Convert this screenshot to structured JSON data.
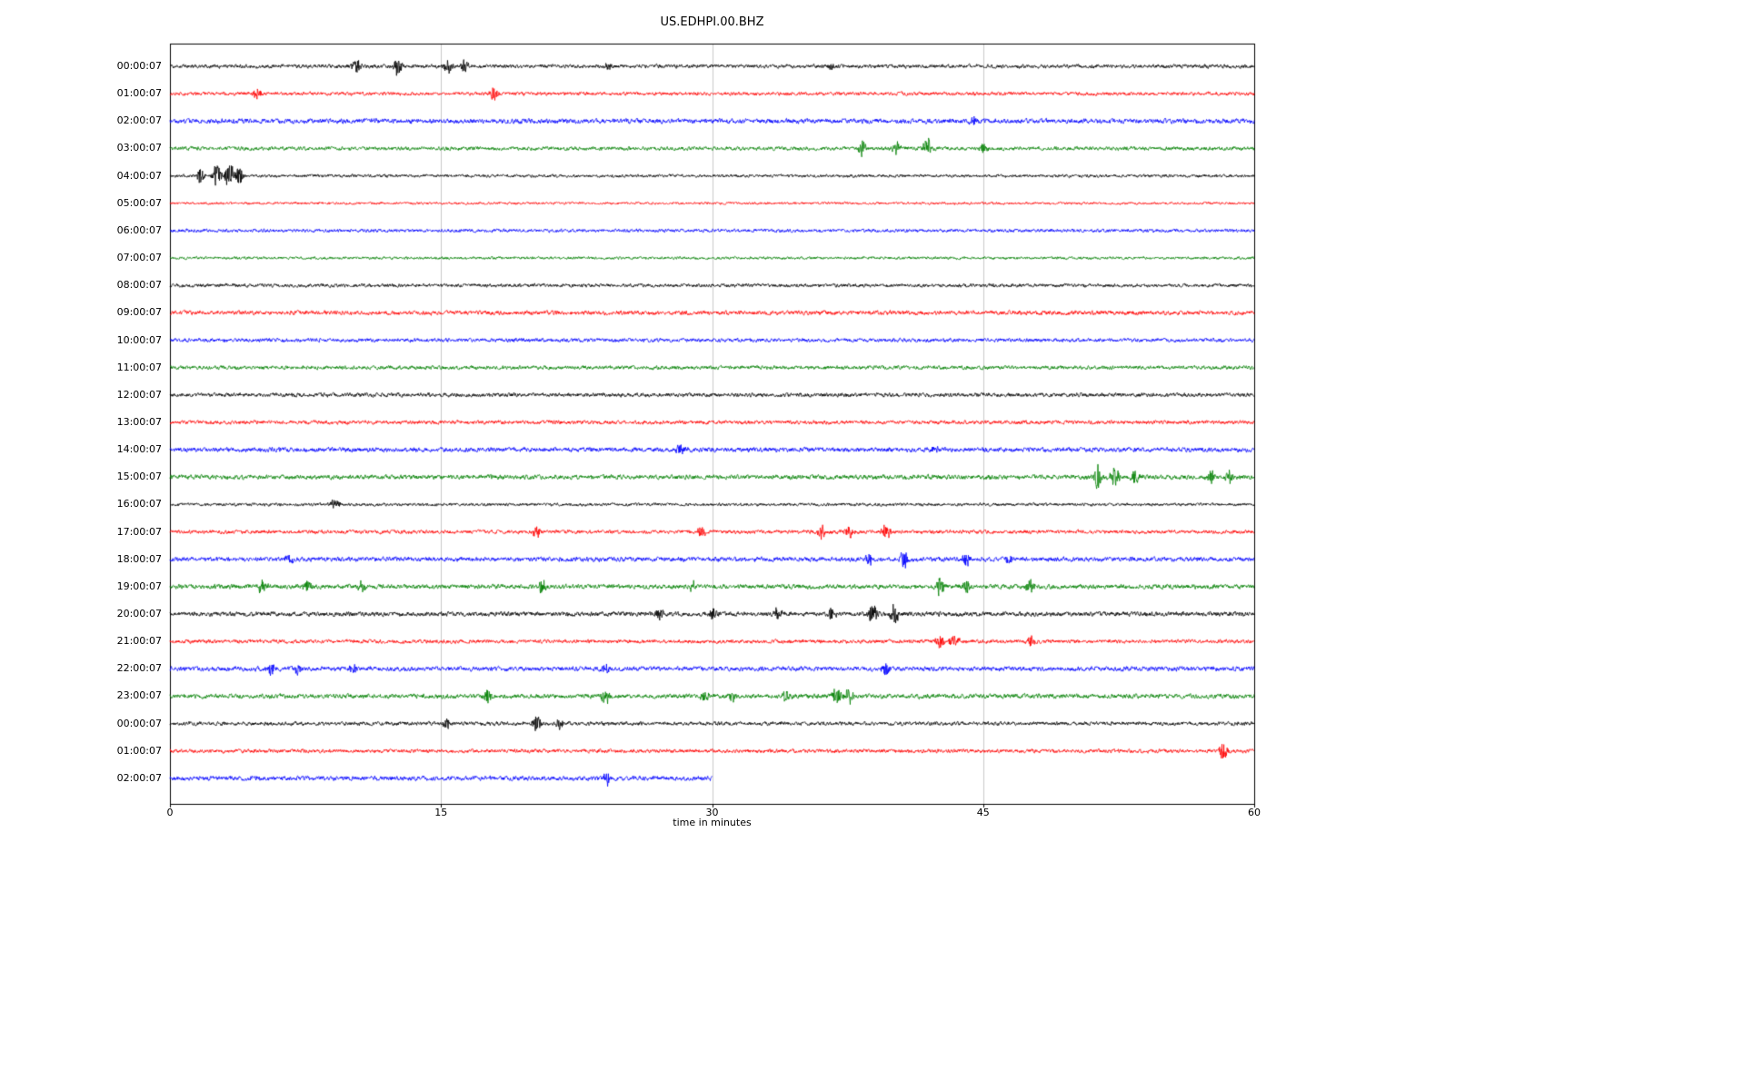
{
  "chart_data": {
    "type": "line",
    "subtype": "seismogram-helicorder",
    "title": "US.EDHPI.00.BHZ",
    "xlabel": "time in minutes",
    "x_range": [
      0,
      60
    ],
    "x_ticks": [
      0,
      15,
      30,
      45,
      60
    ],
    "grid": "vertical-light-gray",
    "legend": "none",
    "trace_color_cycle": [
      "#000000",
      "#ff0000",
      "#0000ff",
      "#008000"
    ],
    "rows": [
      {
        "label": "00:00:07",
        "color": "#000000",
        "noise": 3.0,
        "end": 60,
        "events": [
          {
            "t": 10.3,
            "a": 8
          },
          {
            "t": 12.6,
            "a": 10
          },
          {
            "t": 15.4,
            "a": 8
          },
          {
            "t": 16.3,
            "a": 6
          },
          {
            "t": 24.2,
            "a": 4
          },
          {
            "t": 36.6,
            "a": 4
          }
        ]
      },
      {
        "label": "01:00:07",
        "color": "#ff0000",
        "noise": 2.8,
        "end": 60,
        "events": [
          {
            "t": 4.8,
            "a": 7
          },
          {
            "t": 17.9,
            "a": 8
          }
        ]
      },
      {
        "label": "02:00:07",
        "color": "#0000ff",
        "noise": 3.8,
        "end": 60,
        "events": [
          {
            "t": 44.5,
            "a": 5
          }
        ]
      },
      {
        "label": "03:00:07",
        "color": "#008000",
        "noise": 3.0,
        "end": 60,
        "events": [
          {
            "t": 38.3,
            "a": 9
          },
          {
            "t": 40.2,
            "a": 7
          },
          {
            "t": 41.9,
            "a": 11
          },
          {
            "t": 45.0,
            "a": 5
          }
        ]
      },
      {
        "label": "04:00:07",
        "color": "#000000",
        "noise": 2.4,
        "end": 60,
        "events": [
          {
            "t": 1.7,
            "a": 9
          },
          {
            "t": 2.6,
            "a": 13
          },
          {
            "t": 3.3,
            "a": 17
          },
          {
            "t": 3.8,
            "a": 11
          }
        ]
      },
      {
        "label": "05:00:07",
        "color": "#ff0000",
        "noise": 2.0,
        "end": 60,
        "events": []
      },
      {
        "label": "06:00:07",
        "color": "#0000ff",
        "noise": 2.6,
        "end": 60,
        "events": []
      },
      {
        "label": "07:00:07",
        "color": "#008000",
        "noise": 2.2,
        "end": 60,
        "events": []
      },
      {
        "label": "08:00:07",
        "color": "#000000",
        "noise": 2.8,
        "end": 60,
        "events": []
      },
      {
        "label": "09:00:07",
        "color": "#ff0000",
        "noise": 3.4,
        "end": 60,
        "events": []
      },
      {
        "label": "10:00:07",
        "color": "#0000ff",
        "noise": 3.0,
        "end": 60,
        "events": []
      },
      {
        "label": "11:00:07",
        "color": "#008000",
        "noise": 3.0,
        "end": 60,
        "events": []
      },
      {
        "label": "12:00:07",
        "color": "#000000",
        "noise": 3.2,
        "end": 60,
        "events": []
      },
      {
        "label": "13:00:07",
        "color": "#ff0000",
        "noise": 3.0,
        "end": 60,
        "events": []
      },
      {
        "label": "14:00:07",
        "color": "#0000ff",
        "noise": 3.6,
        "end": 60,
        "events": [
          {
            "t": 28.2,
            "a": 5
          },
          {
            "t": 42.3,
            "a": 5
          }
        ]
      },
      {
        "label": "15:00:07",
        "color": "#008000",
        "noise": 3.6,
        "end": 60,
        "events": [
          {
            "t": 51.3,
            "a": 15
          },
          {
            "t": 52.3,
            "a": 11
          },
          {
            "t": 53.4,
            "a": 7
          },
          {
            "t": 57.6,
            "a": 8
          },
          {
            "t": 58.6,
            "a": 7
          }
        ]
      },
      {
        "label": "16:00:07",
        "color": "#000000",
        "noise": 2.4,
        "end": 60,
        "events": [
          {
            "t": 9.1,
            "a": 8
          }
        ]
      },
      {
        "label": "17:00:07",
        "color": "#ff0000",
        "noise": 3.0,
        "end": 60,
        "events": [
          {
            "t": 20.3,
            "a": 7
          },
          {
            "t": 29.4,
            "a": 6
          },
          {
            "t": 36.1,
            "a": 7
          },
          {
            "t": 37.6,
            "a": 8
          },
          {
            "t": 39.6,
            "a": 10
          }
        ]
      },
      {
        "label": "18:00:07",
        "color": "#0000ff",
        "noise": 3.6,
        "end": 60,
        "events": [
          {
            "t": 6.6,
            "a": 6
          },
          {
            "t": 38.7,
            "a": 7
          },
          {
            "t": 40.6,
            "a": 9
          },
          {
            "t": 44.1,
            "a": 8
          },
          {
            "t": 46.4,
            "a": 6
          }
        ]
      },
      {
        "label": "19:00:07",
        "color": "#008000",
        "noise": 3.6,
        "end": 60,
        "events": [
          {
            "t": 5.1,
            "a": 7
          },
          {
            "t": 7.6,
            "a": 6
          },
          {
            "t": 10.6,
            "a": 6
          },
          {
            "t": 20.6,
            "a": 7
          },
          {
            "t": 28.9,
            "a": 8
          },
          {
            "t": 42.6,
            "a": 9
          },
          {
            "t": 44.1,
            "a": 7
          },
          {
            "t": 47.6,
            "a": 8
          }
        ]
      },
      {
        "label": "20:00:07",
        "color": "#000000",
        "noise": 3.6,
        "end": 60,
        "events": [
          {
            "t": 27.1,
            "a": 6
          },
          {
            "t": 30.1,
            "a": 7
          },
          {
            "t": 33.6,
            "a": 6
          },
          {
            "t": 36.6,
            "a": 6
          },
          {
            "t": 38.9,
            "a": 13
          },
          {
            "t": 40.1,
            "a": 11
          }
        ]
      },
      {
        "label": "21:00:07",
        "color": "#ff0000",
        "noise": 3.0,
        "end": 60,
        "events": [
          {
            "t": 42.6,
            "a": 9
          },
          {
            "t": 43.4,
            "a": 8
          },
          {
            "t": 47.6,
            "a": 6
          }
        ]
      },
      {
        "label": "22:00:07",
        "color": "#0000ff",
        "noise": 3.6,
        "end": 60,
        "events": [
          {
            "t": 5.6,
            "a": 6
          },
          {
            "t": 7.1,
            "a": 6
          },
          {
            "t": 10.1,
            "a": 6
          },
          {
            "t": 24.1,
            "a": 5
          },
          {
            "t": 39.6,
            "a": 6
          }
        ]
      },
      {
        "label": "23:00:07",
        "color": "#008000",
        "noise": 3.6,
        "end": 60,
        "events": [
          {
            "t": 17.6,
            "a": 9
          },
          {
            "t": 24.1,
            "a": 8
          },
          {
            "t": 29.6,
            "a": 6
          },
          {
            "t": 31.1,
            "a": 6
          },
          {
            "t": 34.1,
            "a": 6
          },
          {
            "t": 36.9,
            "a": 10
          },
          {
            "t": 37.6,
            "a": 9
          }
        ]
      },
      {
        "label": "00:00:07",
        "color": "#000000",
        "noise": 3.0,
        "end": 60,
        "events": [
          {
            "t": 15.3,
            "a": 5
          },
          {
            "t": 20.3,
            "a": 9
          },
          {
            "t": 21.6,
            "a": 7
          }
        ]
      },
      {
        "label": "01:00:07",
        "color": "#ff0000",
        "noise": 3.0,
        "end": 60,
        "events": [
          {
            "t": 58.3,
            "a": 10
          }
        ]
      },
      {
        "label": "02:00:07",
        "color": "#0000ff",
        "noise": 3.6,
        "end": 30,
        "events": [
          {
            "t": 24.2,
            "a": 7
          }
        ]
      }
    ]
  }
}
